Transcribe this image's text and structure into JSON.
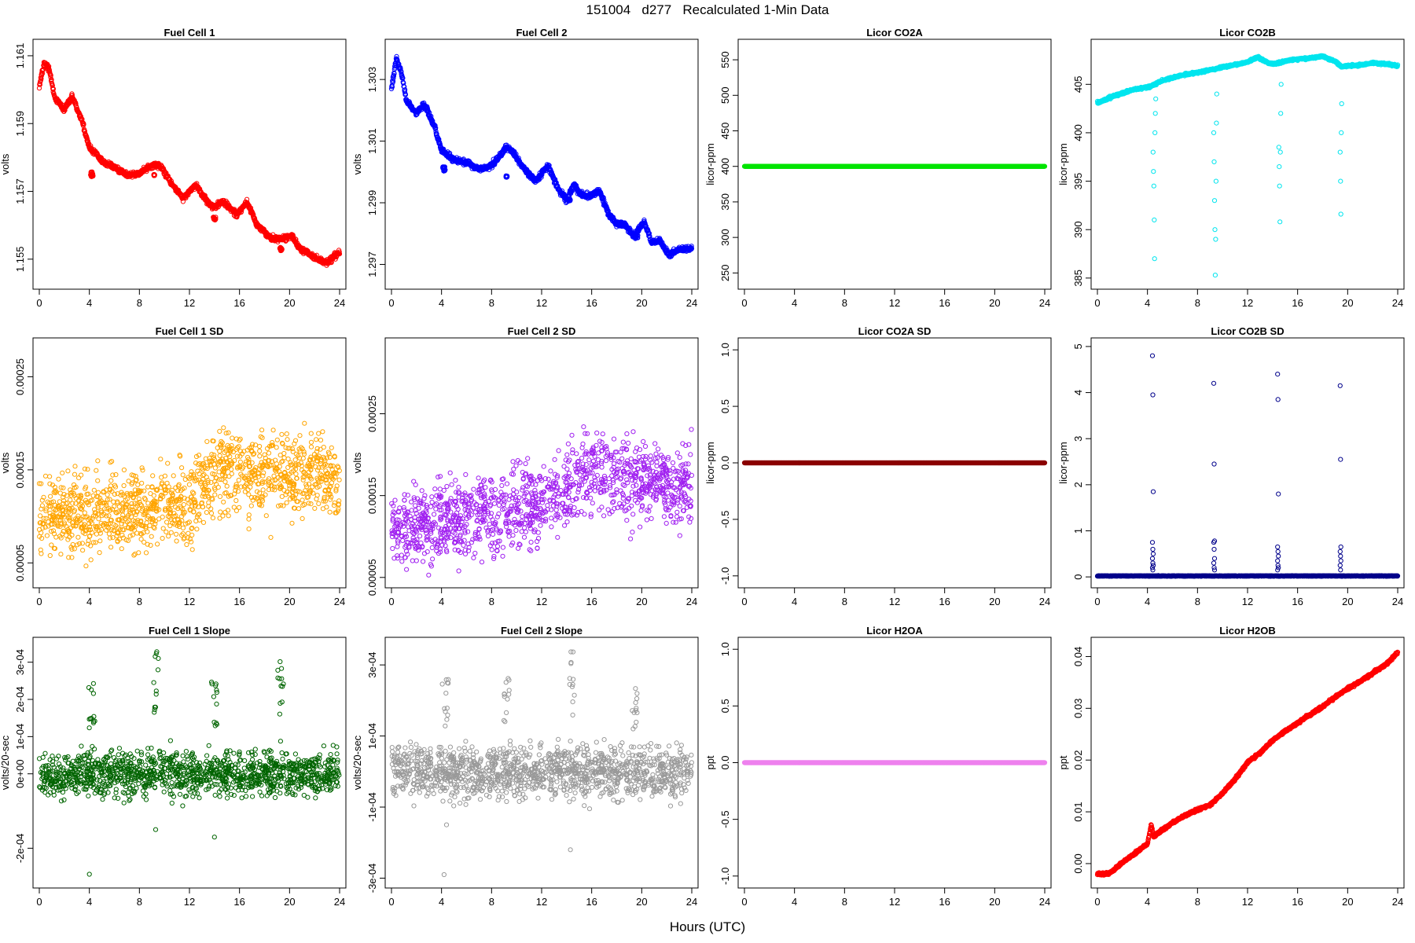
{
  "page": {
    "title": "151004   d277   Recalculated 1-Min Data",
    "xlabel": "Hours (UTC)"
  },
  "chart_data": [
    {
      "type": "scatter",
      "title": "Fuel Cell 1",
      "ylabel": "volts",
      "color": "#ff0000",
      "xlim": [
        0,
        24
      ],
      "ylim": [
        1.1543,
        1.1613
      ],
      "xticks": [
        "0",
        "4",
        "8",
        "12",
        "16",
        "20",
        "24"
      ],
      "xtick_values": [
        0,
        4,
        8,
        12,
        16,
        20,
        24
      ],
      "yticks": [
        "1.155",
        "1.157",
        "1.159",
        "1.161"
      ],
      "ytick_values": [
        1.155,
        1.157,
        1.159,
        1.161
      ],
      "points": {
        "shape": "drift",
        "x": [
          0,
          0.4,
          0.8,
          1.2,
          2,
          2.6,
          3.4,
          4,
          5,
          6,
          7,
          8,
          8.6,
          9.2,
          9.8,
          10.6,
          11.5,
          12.5,
          13.4,
          14,
          14.6,
          15,
          15.8,
          16.6,
          17.4,
          18,
          18.6,
          19.4,
          20.2,
          20.8,
          21.4,
          22.2,
          23,
          24
        ],
        "y": [
          1.1601,
          1.1608,
          1.1606,
          1.1598,
          1.1594,
          1.1598,
          1.1591,
          1.1583,
          1.1579,
          1.1577,
          1.1575,
          1.1575,
          1.1577,
          1.1578,
          1.1577,
          1.1572,
          1.1568,
          1.1572,
          1.1567,
          1.1565,
          1.1567,
          1.1566,
          1.1563,
          1.1567,
          1.156,
          1.1558,
          1.1556,
          1.1556,
          1.1557,
          1.1553,
          1.1552,
          1.155,
          1.1549,
          1.1552
        ],
        "n": 1300,
        "noise": 0.00011,
        "extra": [
          [
            9.2,
            1.15748,
            5,
            0.05,
            4e-05
          ],
          [
            4.2,
            1.1575,
            8,
            0.1,
            0.00015
          ],
          [
            14,
            1.1562,
            6,
            0.1,
            0.0001
          ],
          [
            19.3,
            1.1553,
            6,
            0.1,
            0.0001
          ]
        ]
      }
    },
    {
      "type": "scatter",
      "title": "Fuel Cell 2",
      "ylabel": "volts",
      "color": "#0000ff",
      "xlim": [
        0,
        24
      ],
      "ylim": [
        1.2964,
        1.3041
      ],
      "xticks": [
        "0",
        "4",
        "8",
        "12",
        "16",
        "20",
        "24"
      ],
      "xtick_values": [
        0,
        4,
        8,
        12,
        16,
        20,
        24
      ],
      "yticks": [
        "1.297",
        "1.299",
        "1.301",
        "1.303"
      ],
      "ytick_values": [
        1.297,
        1.299,
        1.301,
        1.303
      ],
      "points": {
        "shape": "drift",
        "x": [
          0,
          0.4,
          0.8,
          1.2,
          2,
          2.6,
          3.4,
          4,
          5,
          6,
          7,
          8,
          8.6,
          9.2,
          9.8,
          10.6,
          11.5,
          12.5,
          13.4,
          14,
          14.6,
          15,
          15.8,
          16.6,
          17.4,
          18,
          18.6,
          19.4,
          20.2,
          20.8,
          21.4,
          22.2,
          23,
          24
        ],
        "y": [
          1.3027,
          1.3037,
          1.3032,
          1.3023,
          1.3019,
          1.3022,
          1.3015,
          1.3007,
          1.3004,
          1.3003,
          1.3001,
          1.3002,
          1.3005,
          1.3008,
          1.3006,
          1.3001,
          1.2997,
          1.3002,
          1.2994,
          1.2991,
          1.2996,
          1.2993,
          1.2992,
          1.2994,
          1.2986,
          1.2983,
          1.2983,
          1.2979,
          1.2984,
          1.2977,
          1.2978,
          1.2973,
          1.2975,
          1.2975
        ],
        "n": 1300,
        "noise": 0.00012,
        "extra": [
          [
            9.2,
            1.29985,
            5,
            0.05,
            5e-05
          ],
          [
            4.2,
            1.3001,
            8,
            0.1,
            0.00015
          ],
          [
            14.2,
            1.2991,
            6,
            0.1,
            0.0001
          ],
          [
            19.6,
            1.2979,
            6,
            0.1,
            0.0001
          ]
        ]
      }
    },
    {
      "type": "scatter",
      "title": "Licor CO2A",
      "ylabel": "licor-ppm",
      "color": "#00e400",
      "xlim": [
        0,
        24
      ],
      "ylim": [
        236,
        570
      ],
      "xticks": [
        "0",
        "4",
        "8",
        "12",
        "16",
        "20",
        "24"
      ],
      "xtick_values": [
        0,
        4,
        8,
        12,
        16,
        20,
        24
      ],
      "yticks": [
        "250",
        "300",
        "350",
        "400",
        "450",
        "500",
        "550"
      ],
      "ytick_values": [
        250,
        300,
        350,
        400,
        450,
        500,
        550
      ],
      "points": {
        "shape": "flat",
        "x": [
          0,
          24
        ],
        "y": [
          400,
          400
        ],
        "n": 1440,
        "noise": 0
      }
    },
    {
      "type": "scatter",
      "title": "Licor CO2B",
      "ylabel": "licor-ppm",
      "color": "#00e5ee",
      "xlim": [
        0,
        24
      ],
      "ylim": [
        384.5,
        409
      ],
      "xticks": [
        "0",
        "4",
        "8",
        "12",
        "16",
        "20",
        "24"
      ],
      "xtick_values": [
        0,
        4,
        8,
        12,
        16,
        20,
        24
      ],
      "yticks": [
        "385",
        "390",
        "395",
        "400",
        "405"
      ],
      "ytick_values": [
        385,
        390,
        395,
        400,
        405
      ],
      "points": {
        "shape": "drift",
        "x": [
          0,
          1,
          2,
          3,
          4,
          4.3,
          5,
          6,
          7,
          8,
          9,
          9.5,
          10,
          11,
          12,
          12.8,
          13.5,
          14,
          14.5,
          15,
          16,
          17,
          18,
          18.5,
          19,
          19.5,
          20,
          21,
          22,
          23,
          24
        ],
        "y": [
          403.1,
          403.6,
          404.1,
          404.5,
          404.7,
          404.8,
          405.3,
          405.7,
          406.0,
          406.2,
          406.5,
          406.6,
          406.8,
          407.0,
          407.3,
          407.8,
          407.3,
          407.1,
          407.2,
          407.4,
          407.6,
          407.7,
          407.9,
          407.6,
          407.4,
          406.8,
          406.9,
          407.0,
          407.2,
          407.1,
          406.9
        ],
        "n": 1440,
        "noise": 0.15,
        "drops": [
          [
            4.45,
            [
              398,
              396,
              394.5,
              391,
              387,
              400,
              402,
              403.5
            ]
          ],
          [
            9.3,
            [
              400,
              397,
              393,
              390,
              385.3,
              389,
              395,
              401,
              404
            ]
          ],
          [
            14.5,
            [
              398.5,
              396.5,
              394.5,
              390.8,
              398,
              402,
              405
            ]
          ],
          [
            19.4,
            [
              398,
              395,
              391.6,
              400,
              403
            ]
          ]
        ]
      }
    },
    {
      "type": "scatter",
      "title": "Fuel Cell 1 SD",
      "ylabel": "volts",
      "color": "#ffa500",
      "xlim": [
        0,
        24
      ],
      "ylim": [
        3e-05,
        0.000285
      ],
      "xticks": [
        "0",
        "4",
        "8",
        "12",
        "16",
        "20",
        "24"
      ],
      "xtick_values": [
        0,
        4,
        8,
        12,
        16,
        20,
        24
      ],
      "yticks": [
        "0.00005",
        "0.00015",
        "0.00025"
      ],
      "ytick_values": [
        5e-05,
        0.00015,
        0.00025
      ],
      "points": {
        "shape": "cloud",
        "x": [
          0,
          12,
          14,
          24
        ],
        "y": [
          0.0001,
          0.00011,
          0.00015,
          0.00014
        ],
        "n": 1300,
        "noise": 3.5e-05,
        "seed": 11
      }
    },
    {
      "type": "scatter",
      "title": "Fuel Cell 2 SD",
      "ylabel": "volts",
      "color": "#a020f0",
      "xlim": [
        0,
        24
      ],
      "ylim": [
        4.5e-05,
        0.000335
      ],
      "xticks": [
        "0",
        "4",
        "8",
        "12",
        "16",
        "20",
        "24"
      ],
      "xtick_values": [
        0,
        4,
        8,
        12,
        16,
        20,
        24
      ],
      "yticks": [
        "0.00005",
        "0.00015",
        "0.00025"
      ],
      "ytick_values": [
        5e-05,
        0.00015,
        0.00025
      ],
      "points": {
        "shape": "cloud",
        "x": [
          0,
          12,
          16,
          24
        ],
        "y": [
          0.00011,
          0.00014,
          0.00018,
          0.00016
        ],
        "n": 1300,
        "noise": 4e-05,
        "seed": 23
      }
    },
    {
      "type": "scatter",
      "title": "Licor CO2A SD",
      "ylabel": "licor-ppm",
      "color": "#8b0000",
      "xlim": [
        0,
        24
      ],
      "ylim": [
        -1.05,
        1.05
      ],
      "xticks": [
        "0",
        "4",
        "8",
        "12",
        "16",
        "20",
        "24"
      ],
      "xtick_values": [
        0,
        4,
        8,
        12,
        16,
        20,
        24
      ],
      "yticks": [
        "-1.0",
        "-0.5",
        "0.0",
        "0.5",
        "1.0"
      ],
      "ytick_values": [
        -1,
        -0.5,
        0,
        0.5,
        1
      ],
      "points": {
        "shape": "flat",
        "x": [
          0,
          24
        ],
        "y": [
          0,
          0
        ],
        "n": 1440,
        "noise": 0
      }
    },
    {
      "type": "scatter",
      "title": "Licor CO2B SD",
      "ylabel": "licor-ppm",
      "color": "#00008b",
      "xlim": [
        0,
        24
      ],
      "ylim": [
        -0.1,
        5.05
      ],
      "xticks": [
        "0",
        "4",
        "8",
        "12",
        "16",
        "20",
        "24"
      ],
      "xtick_values": [
        0,
        4,
        8,
        12,
        16,
        20,
        24
      ],
      "yticks": [
        "0",
        "1",
        "2",
        "3",
        "4",
        "5"
      ],
      "ytick_values": [
        0,
        1,
        2,
        3,
        4,
        5
      ],
      "points": {
        "shape": "flat",
        "x": [
          0,
          24
        ],
        "y": [
          0.02,
          0.02
        ],
        "n": 1440,
        "noise": 0.008,
        "spikes": [
          [
            4.4,
            [
              4.8,
              3.95,
              1.85,
              0.75,
              0.6,
              0.5,
              0.4,
              0.3,
              0.25,
              0.2,
              0.15
            ]
          ],
          [
            9.3,
            [
              4.2,
              2.45,
              0.78,
              0.75,
              0.6,
              0.4,
              0.3,
              0.2,
              0.15
            ]
          ],
          [
            14.4,
            [
              4.4,
              3.85,
              1.8,
              0.65,
              0.55,
              0.45,
              0.35,
              0.25,
              0.2,
              0.15
            ]
          ],
          [
            19.4,
            [
              4.15,
              2.55,
              0.65,
              0.55,
              0.45,
              0.35,
              0.25,
              0.15
            ]
          ]
        ]
      }
    },
    {
      "type": "scatter",
      "title": "Fuel Cell 1 Slope",
      "ylabel": "volts/20-sec",
      "color": "#006400",
      "xlim": [
        0,
        24
      ],
      "ylim": [
        -0.00029,
        0.00035
      ],
      "xticks": [
        "0",
        "4",
        "8",
        "12",
        "16",
        "20",
        "24"
      ],
      "xtick_values": [
        0,
        4,
        8,
        12,
        16,
        20,
        24
      ],
      "yticks": [
        "-2e-04",
        "0e+00",
        "1e-04",
        "2e-04",
        "3e-04"
      ],
      "ytick_values": [
        -0.0002,
        0,
        0.0001,
        0.0002,
        0.0003
      ],
      "points": {
        "shape": "cloud",
        "x": [
          0,
          24
        ],
        "y": [
          0,
          0
        ],
        "n": 1300,
        "noise": 5e-05,
        "seed": 37,
        "bursts": [
          [
            4.2,
            0.00025,
            0.00012
          ],
          [
            9.3,
            0.00033,
            0.00015
          ],
          [
            14,
            0.00025,
            0.00012
          ],
          [
            19.3,
            0.00033,
            0.00015
          ]
        ],
        "outliers": [
          [
            4,
            -0.00027
          ],
          [
            9.3,
            -0.00015
          ],
          [
            14,
            -0.00017
          ]
        ]
      }
    },
    {
      "type": "scatter",
      "title": "Fuel Cell 2 Slope",
      "ylabel": "volts/20-sec",
      "color": "#999999",
      "xlim": [
        0,
        24
      ],
      "ylim": [
        -0.00031,
        0.00036
      ],
      "xticks": [
        "0",
        "4",
        "8",
        "12",
        "16",
        "20",
        "24"
      ],
      "xtick_values": [
        0,
        4,
        8,
        12,
        16,
        20,
        24
      ],
      "yticks": [
        "-3e-04",
        "-1e-04",
        "1e-04",
        "3e-04"
      ],
      "ytick_values": [
        -0.0003,
        -0.0001,
        0.0001,
        0.0003
      ],
      "points": {
        "shape": "cloud",
        "x": [
          0,
          24
        ],
        "y": [
          0,
          0
        ],
        "n": 1300,
        "noise": 6e-05,
        "seed": 53,
        "bursts": [
          [
            4.3,
            0.00028,
            0.00012
          ],
          [
            9.2,
            0.00027,
            0.00012
          ],
          [
            14.4,
            0.00034,
            0.00015
          ],
          [
            19.4,
            0.00027,
            0.00012
          ]
        ],
        "outliers": [
          [
            4.2,
            -0.00029
          ],
          [
            14.3,
            -0.00022
          ],
          [
            4.4,
            -0.00015
          ]
        ]
      }
    },
    {
      "type": "scatter",
      "title": "Licor H2OA",
      "ylabel": "ppt",
      "color": "#ee82ee",
      "xlim": [
        0,
        24
      ],
      "ylim": [
        -1.05,
        1.05
      ],
      "xticks": [
        "0",
        "4",
        "8",
        "12",
        "16",
        "20",
        "24"
      ],
      "xtick_values": [
        0,
        4,
        8,
        12,
        16,
        20,
        24
      ],
      "yticks": [
        "-1.0",
        "-0.5",
        "0.0",
        "0.5",
        "1.0"
      ],
      "ytick_values": [
        -1,
        -0.5,
        0,
        0.5,
        1
      ],
      "points": {
        "shape": "flat",
        "x": [
          0,
          24
        ],
        "y": [
          0,
          0
        ],
        "n": 1440,
        "noise": 0
      }
    },
    {
      "type": "scatter",
      "title": "Licor H2OB",
      "ylabel": "ppt",
      "color": "#ff0000",
      "xlim": [
        0,
        24
      ],
      "ylim": [
        -0.0035,
        0.0425
      ],
      "xticks": [
        "0",
        "4",
        "8",
        "12",
        "16",
        "20",
        "24"
      ],
      "xtick_values": [
        0,
        4,
        8,
        12,
        16,
        20,
        24
      ],
      "yticks": [
        "0.00",
        "0.01",
        "0.02",
        "0.03",
        "0.04"
      ],
      "ytick_values": [
        0,
        0.01,
        0.02,
        0.03,
        0.04
      ],
      "points": {
        "shape": "drift",
        "x": [
          0,
          0.5,
          1,
          2,
          3,
          4,
          4.3,
          4.5,
          5,
          6,
          7,
          8,
          9,
          10,
          11,
          12,
          13,
          14,
          15,
          16,
          17,
          18,
          19,
          20,
          21,
          22,
          23,
          24
        ],
        "y": [
          -0.002,
          -0.0021,
          -0.0018,
          0.0002,
          0.002,
          0.0038,
          0.0075,
          0.0052,
          0.0062,
          0.0079,
          0.0093,
          0.0104,
          0.0113,
          0.0136,
          0.0163,
          0.0196,
          0.0214,
          0.0238,
          0.0256,
          0.0272,
          0.0288,
          0.0303,
          0.0322,
          0.0338,
          0.0352,
          0.0368,
          0.0383,
          0.0408
        ],
        "n": 1440,
        "noise": 0.00035
      }
    }
  ]
}
